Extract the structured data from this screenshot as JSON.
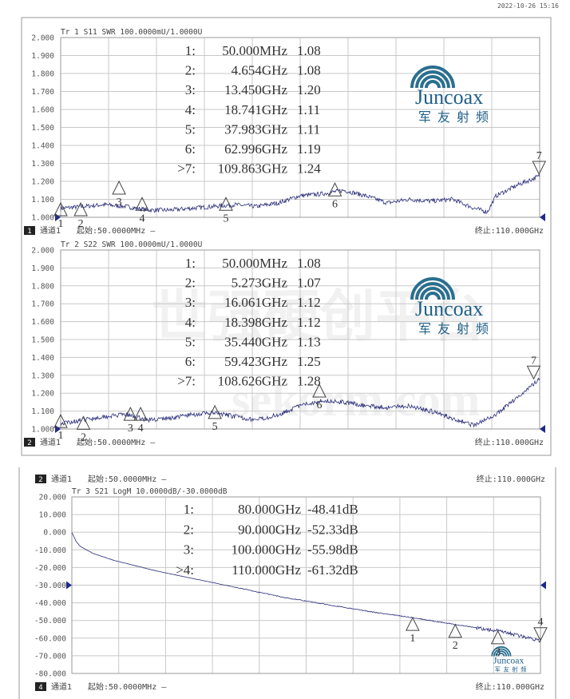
{
  "header": {
    "timestamp": "2022-10-26 15:16"
  },
  "watermark": {
    "text": "世强硬创平台",
    "url": "sekorm.com"
  },
  "logo": {
    "brand": "Juncoax",
    "chinese": "军友射频"
  },
  "colors": {
    "trace": "#2b2f7a",
    "grid": "#c8c8c8",
    "text": "#333333",
    "marker_arrow": "#1e2a8a"
  },
  "top_strip": {
    "channel_num": "2",
    "channel": "通道1",
    "start": "起始:50.0000MHz —",
    "stop": "终止:110.000GHz"
  },
  "chart_data": [
    {
      "type": "line",
      "title": "Tr 1  S11 SWR 100.0000mU/1.0000U",
      "ylim": [
        1.0,
        2.0
      ],
      "xlim_ghz": [
        0.05,
        110
      ],
      "yticks": [
        "2.000",
        "1.900",
        "1.800",
        "1.700",
        "1.600",
        "1.500",
        "1.400",
        "1.300",
        "1.200",
        "1.100",
        "1.000"
      ],
      "grid": true,
      "footer": {
        "channel_num": "1",
        "channel": "通道1",
        "start": "起始:50.0000MHz —",
        "stop": "终止:110.000GHz"
      },
      "series": [
        {
          "x_ghz": [
            0.05,
            5,
            10,
            15,
            20,
            25,
            30,
            35,
            40,
            45,
            50,
            55,
            60,
            65,
            70,
            75,
            80,
            85,
            90,
            95,
            98,
            100,
            105,
            110
          ],
          "y": [
            1.05,
            1.06,
            1.07,
            1.06,
            1.04,
            1.04,
            1.05,
            1.06,
            1.07,
            1.06,
            1.08,
            1.12,
            1.13,
            1.15,
            1.12,
            1.08,
            1.1,
            1.09,
            1.1,
            1.05,
            1.03,
            1.12,
            1.18,
            1.23
          ]
        }
      ],
      "markers": [
        {
          "num": "1:",
          "label": "1",
          "freq": "50.000MHz",
          "x_ghz": 0.05,
          "value": "1.08",
          "y": 1.08,
          "active": false
        },
        {
          "num": "2:",
          "label": "2",
          "freq": "4.654GHz",
          "x_ghz": 4.654,
          "value": "1.08",
          "y": 1.08,
          "active": false
        },
        {
          "num": "3:",
          "label": "3",
          "freq": "13.450GHz",
          "x_ghz": 13.45,
          "value": "1.20",
          "y": 1.2,
          "active": false
        },
        {
          "num": "4:",
          "label": "4",
          "freq": "18.741GHz",
          "x_ghz": 18.741,
          "value": "1.11",
          "y": 1.11,
          "active": false
        },
        {
          "num": "5:",
          "label": "5",
          "freq": "37.983GHz",
          "x_ghz": 37.983,
          "value": "1.11",
          "y": 1.11,
          "active": false
        },
        {
          "num": "6:",
          "label": "6",
          "freq": "62.996GHz",
          "x_ghz": 62.996,
          "value": "1.19",
          "y": 1.19,
          "active": false
        },
        {
          "num": ">7:",
          "label": "7",
          "freq": "109.863GHz",
          "x_ghz": 109.863,
          "value": "1.24",
          "y": 1.24,
          "active": true
        }
      ]
    },
    {
      "type": "line",
      "title": "Tr 2  S22 SWR 100.0000mU/1.0000U",
      "ylim": [
        1.0,
        2.0
      ],
      "xlim_ghz": [
        0.05,
        110
      ],
      "yticks": [
        "2.000",
        "1.900",
        "1.800",
        "1.700",
        "1.600",
        "1.500",
        "1.400",
        "1.300",
        "1.200",
        "1.100",
        "1.000"
      ],
      "grid": true,
      "footer": {
        "channel_num": "2",
        "channel": "通道1",
        "start": "起始:50.0000MHz —",
        "stop": "终止:110.000GHz"
      },
      "series": [
        {
          "x_ghz": [
            0.05,
            5,
            10,
            15,
            20,
            25,
            30,
            35,
            40,
            45,
            50,
            55,
            60,
            65,
            70,
            75,
            80,
            85,
            90,
            95,
            100,
            105,
            110
          ],
          "y": [
            1.03,
            1.05,
            1.07,
            1.08,
            1.05,
            1.06,
            1.08,
            1.09,
            1.07,
            1.05,
            1.08,
            1.13,
            1.16,
            1.15,
            1.13,
            1.12,
            1.13,
            1.1,
            1.06,
            1.02,
            1.08,
            1.18,
            1.28
          ]
        }
      ],
      "markers": [
        {
          "num": "1:",
          "label": "1",
          "freq": "50.000MHz",
          "x_ghz": 0.05,
          "value": "1.08",
          "y": 1.08,
          "active": false
        },
        {
          "num": "2:",
          "label": "2",
          "freq": "5.273GHz",
          "x_ghz": 5.273,
          "value": "1.07",
          "y": 1.07,
          "active": false
        },
        {
          "num": "3:",
          "label": "3",
          "freq": "16.061GHz",
          "x_ghz": 16.061,
          "value": "1.12",
          "y": 1.12,
          "active": false
        },
        {
          "num": "4:",
          "label": "4",
          "freq": "18.398GHz",
          "x_ghz": 18.398,
          "value": "1.12",
          "y": 1.12,
          "active": false
        },
        {
          "num": "5:",
          "label": "5",
          "freq": "35.440GHz",
          "x_ghz": 35.44,
          "value": "1.13",
          "y": 1.13,
          "active": false
        },
        {
          "num": "6:",
          "label": "6",
          "freq": "59.423GHz",
          "x_ghz": 59.423,
          "value": "1.25",
          "y": 1.25,
          "active": false
        },
        {
          "num": ">7:",
          "label": "7",
          "freq": "108.626GHz",
          "x_ghz": 108.626,
          "value": "1.28",
          "y": 1.28,
          "active": true
        }
      ]
    },
    {
      "type": "line",
      "title": "Tr 3  S21 LogM 10.0000dB/-30.0000dB",
      "ylim": [
        -80,
        20
      ],
      "reference": -30,
      "xlim_ghz": [
        0.05,
        110
      ],
      "yticks": [
        "20.000",
        "10.000",
        "0.000",
        "-10.000",
        "-20.000",
        "-30.000",
        "-40.000",
        "-50.000",
        "-60.000",
        "-70.000",
        "-80.000"
      ],
      "grid": true,
      "footer": {
        "channel_num": "4",
        "channel": "通道1",
        "start": "起始:50.0000MHz —",
        "stop": "终止:110.000GHz"
      },
      "series": [
        {
          "x_ghz": [
            0.05,
            1,
            2,
            5,
            10,
            20,
            30,
            40,
            50,
            60,
            70,
            80,
            90,
            100,
            110
          ],
          "y": [
            0,
            -5,
            -8,
            -12,
            -16,
            -22,
            -27,
            -32,
            -37,
            -41,
            -45,
            -48.4,
            -52.3,
            -56,
            -61.3
          ]
        }
      ],
      "markers": [
        {
          "num": "1:",
          "label": "1",
          "freq": "80.000GHz",
          "x_ghz": 80,
          "value": "-48.41dB",
          "y": -48.41,
          "active": false
        },
        {
          "num": "2:",
          "label": "2",
          "freq": "90.000GHz",
          "x_ghz": 90,
          "value": "-52.33dB",
          "y": -52.33,
          "active": false
        },
        {
          "num": "3:",
          "label": "3",
          "freq": "100.000GHz",
          "x_ghz": 100,
          "value": "-55.98dB",
          "y": -55.98,
          "active": false
        },
        {
          "num": ">4:",
          "label": "4",
          "freq": "110.000GHz",
          "x_ghz": 110,
          "value": "-61.32dB",
          "y": -61.32,
          "active": true
        }
      ]
    }
  ]
}
